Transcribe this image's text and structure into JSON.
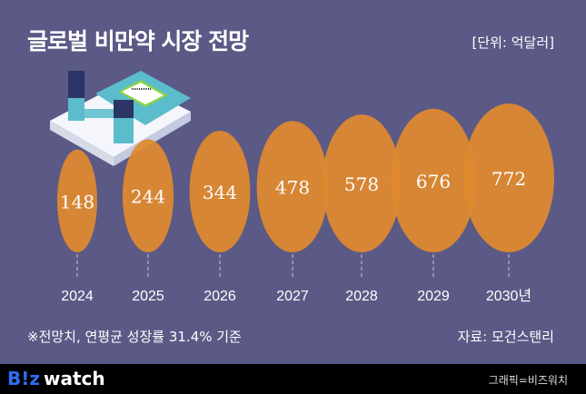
{
  "header": {
    "title": "글로벌 비만약 시장 전망",
    "unit": "[단위: 억달러]"
  },
  "footnote": "※전망치, 연평균 성장률 31.4% 기준",
  "source": "자료: 모건스탠리",
  "footer": {
    "brand_b": "B!z",
    "brand_w": "watch",
    "credit": "그래픽=비즈워치"
  },
  "colors": {
    "background": "#5b5985",
    "bubble": "#e08a2e",
    "footer": "#000000"
  },
  "chart_data": {
    "type": "bubble",
    "title": "글로벌 비만약 시장 전망",
    "ylabel": "억달러",
    "categories": [
      "2024",
      "2025",
      "2026",
      "2027",
      "2028",
      "2029",
      "2030년"
    ],
    "values": [
      148,
      244,
      344,
      478,
      578,
      676,
      772
    ],
    "value_labels": [
      "148",
      "244",
      "344",
      "478",
      "578",
      "676",
      "772"
    ]
  }
}
